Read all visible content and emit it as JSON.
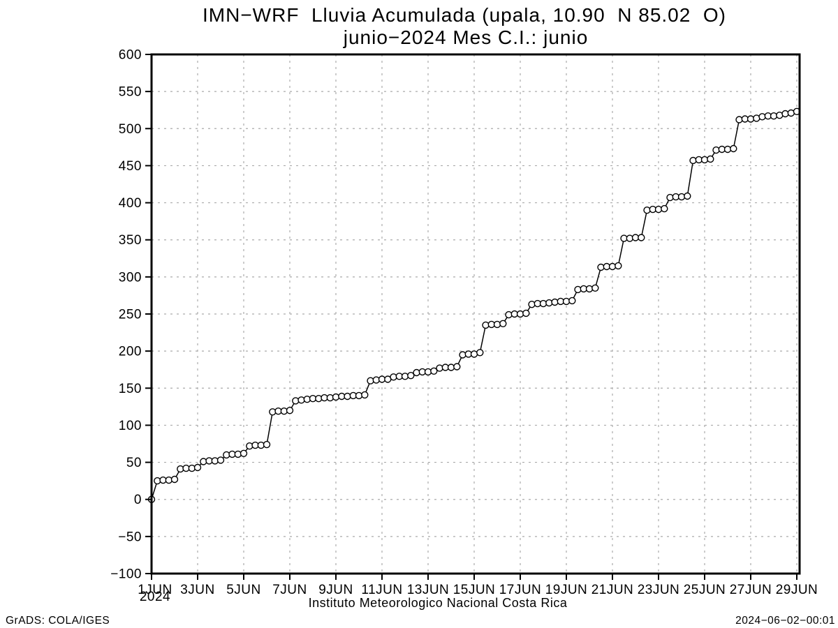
{
  "header": {
    "title_line1": "IMN−WRF  Lluvia Acumulada (upala, 10.90  N 85.02  O)",
    "title_line2": "junio−2024 Mes C.I.: junio"
  },
  "footer": {
    "credit": "GrADS: COLA/IGES",
    "timestamp": "2024−06−02−00:01"
  },
  "chart_data": {
    "type": "line",
    "title": "IMN-WRF Lluvia Acumulada (upala, 10.90 N 85.02 O)",
    "subtitle": "junio-2024 Mes C.I.: junio",
    "xlabel": "Instituto Meteorologico Nacional Costa Rica",
    "ylabel": "",
    "ylim": [
      -100,
      600
    ],
    "ytick_step": 50,
    "grid": true,
    "legend_position": "none",
    "x_axis": {
      "tick_labels": [
        "1JUN",
        "3JUN",
        "5JUN",
        "7JUN",
        "9JUN",
        "11JUN",
        "13JUN",
        "15JUN",
        "17JUN",
        "19JUN",
        "21JUN",
        "23JUN",
        "25JUN",
        "27JUN",
        "29JUN"
      ],
      "year_label": "2024",
      "start": "1JUN2024 00Z",
      "end": "29JUN2024 00Z",
      "interval_hours": 6
    },
    "colors": {
      "line": "#000000",
      "marker_fill": "#ffffff",
      "grid": "#aaaaaa",
      "frame": "#000000"
    },
    "series": [
      {
        "name": "lluvia_acumulada_mm",
        "marker": "open-circle",
        "values": [
          0,
          25,
          26,
          26,
          27,
          41,
          42,
          42,
          43,
          51,
          52,
          52,
          53,
          60,
          61,
          61,
          62,
          72,
          73,
          73,
          74,
          118,
          119,
          119,
          120,
          133,
          134,
          135,
          136,
          136,
          137,
          137,
          138,
          139,
          139,
          140,
          140,
          141,
          160,
          161,
          162,
          162,
          165,
          166,
          166,
          167,
          171,
          172,
          172,
          173,
          177,
          178,
          178,
          179,
          195,
          196,
          196,
          198,
          235,
          236,
          236,
          237,
          249,
          250,
          250,
          251,
          263,
          264,
          264,
          265,
          266,
          267,
          267,
          268,
          283,
          284,
          284,
          285,
          313,
          314,
          314,
          315,
          352,
          352,
          353,
          353,
          390,
          391,
          391,
          392,
          407,
          408,
          408,
          409,
          457,
          458,
          458,
          459,
          471,
          472,
          472,
          473,
          512,
          513,
          513,
          514,
          516,
          517,
          517,
          518,
          520,
          521,
          523
        ]
      }
    ]
  }
}
